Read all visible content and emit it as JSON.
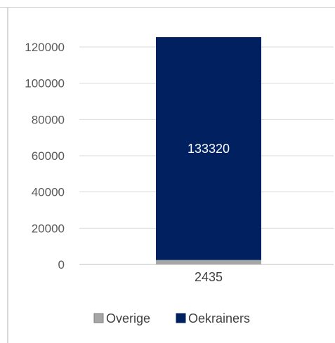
{
  "chart_data": {
    "type": "bar",
    "stacked": true,
    "categories": [
      ""
    ],
    "series": [
      {
        "name": "Overige",
        "values": [
          2435
        ],
        "color": "#a6a6a6",
        "data_label": "2435"
      },
      {
        "name": "Oekrainers",
        "values": [
          133320
        ],
        "color": "#002060",
        "data_label": "133320"
      }
    ],
    "yaxis": {
      "ticks": [
        0,
        20000,
        40000,
        60000,
        80000,
        100000,
        120000
      ],
      "tick_labels": [
        "0",
        "20000",
        "40000",
        "60000",
        "80000",
        "100000",
        "120000"
      ]
    },
    "grid": true,
    "legend": "bottom"
  }
}
